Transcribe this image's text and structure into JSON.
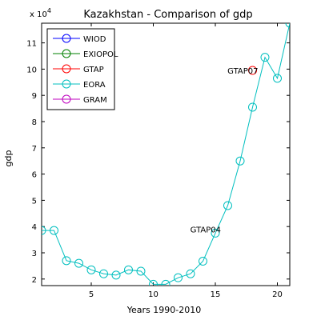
{
  "chart_data": {
    "type": "line",
    "title": "Kazakhstan - Comparison of gdp",
    "xlabel": "Years 1990-2010",
    "ylabel": "gdp",
    "exponent_label": "x 10",
    "exponent_power": "4",
    "xlim": [
      1,
      21
    ],
    "ylim": [
      17500,
      117500
    ],
    "x_ticks": [
      5,
      10,
      15,
      20
    ],
    "x_tick_labels": [
      "5",
      "10",
      "15",
      "20"
    ],
    "y_ticks": [
      20000,
      30000,
      40000,
      50000,
      60000,
      70000,
      80000,
      90000,
      100000,
      110000
    ],
    "y_tick_labels": [
      "2",
      "3",
      "4",
      "5",
      "6",
      "7",
      "8",
      "9",
      "10",
      "11"
    ],
    "grid": false,
    "legend_position": "top-left",
    "series": [
      {
        "name": "WIOD",
        "color": "#0000ff",
        "x": [],
        "y": []
      },
      {
        "name": "EXIOPOL",
        "color": "#008000",
        "x": [],
        "y": []
      },
      {
        "name": "GTAP",
        "color": "#ff0000",
        "x": [
          18
        ],
        "y": [
          99500
        ]
      },
      {
        "name": "EORA",
        "color": "#00bfbf",
        "x": [
          1,
          2,
          3,
          4,
          5,
          6,
          7,
          8,
          9,
          10,
          11,
          12,
          13,
          14,
          15,
          16,
          17,
          18,
          19,
          20,
          21
        ],
        "y": [
          38500,
          38500,
          27000,
          26000,
          23500,
          22000,
          21500,
          23500,
          23000,
          18000,
          18000,
          20500,
          22000,
          26800,
          37500,
          48000,
          65000,
          85500,
          104500,
          96500,
          117500
        ]
      },
      {
        "name": "GRAM",
        "color": "#bf00bf",
        "x": [],
        "y": []
      }
    ],
    "annotations": [
      {
        "text": "GTAP07",
        "x": 18,
        "y": 99500
      },
      {
        "text": "GTAP04",
        "x": 15,
        "y": 39000
      }
    ]
  }
}
